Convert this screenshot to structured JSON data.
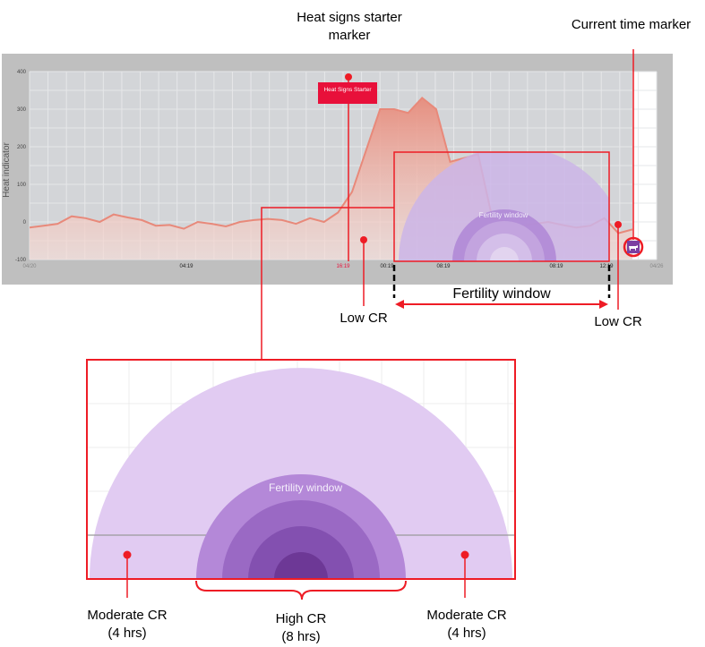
{
  "chart": {
    "y_axis_title": "Heat indicator",
    "y_ticks": [
      "400",
      "300",
      "200",
      "100",
      "0",
      "-100"
    ],
    "x_ticks": [
      {
        "label": "04/20",
        "pos": 0.0
      },
      {
        "label": "04:19",
        "pos": 0.25
      },
      {
        "label": "16:19",
        "pos": 0.5
      },
      {
        "label": "00:19",
        "pos": 0.57
      },
      {
        "label": "08:19",
        "pos": 0.66
      },
      {
        "label": "08:19",
        "pos": 0.84
      },
      {
        "label": "12:19",
        "pos": 0.92
      },
      {
        "label": "04/26",
        "pos": 1.0
      }
    ],
    "ylim": [
      -100,
      400
    ],
    "heat_series": [
      -15,
      -10,
      -5,
      15,
      10,
      0,
      20,
      12,
      5,
      -10,
      -8,
      -18,
      0,
      -5,
      -12,
      0,
      5,
      8,
      5,
      -5,
      10,
      0,
      25,
      80,
      190,
      300,
      300,
      290,
      330,
      300,
      160,
      170,
      180,
      10,
      0,
      -10,
      -5,
      0,
      -8,
      -15,
      -10,
      10,
      -30,
      -20
    ],
    "heat_signs_badge": "Heat Signs Starter",
    "fertility_window_label": "Fertility window"
  },
  "callouts": {
    "heat_signs_marker": "Heat signs starter\nmarker",
    "current_time_marker": "Current time marker",
    "fertility_window": "Fertility window",
    "low_cr_left": "Low CR",
    "low_cr_right": "Low CR"
  },
  "zoom": {
    "fertility_window_label": "Fertility window",
    "moderate_cr_left": "Moderate CR\n(4 hrs)",
    "high_cr": "High CR\n(8 hrs)",
    "moderate_cr_right": "Moderate CR\n(4 hrs)"
  },
  "colors": {
    "annotation_red": "#ee1c25",
    "badge_red": "#e8103a",
    "chart_bg": "#d3d5d8",
    "chart_frame": "#bdbdbd",
    "heat_line": "#e8897a",
    "light_purple": "#e1cbf2",
    "mid_purple": "#b488d8",
    "dark_purple": "#6d3896"
  },
  "icons": {
    "current_time": "cow-icon"
  }
}
